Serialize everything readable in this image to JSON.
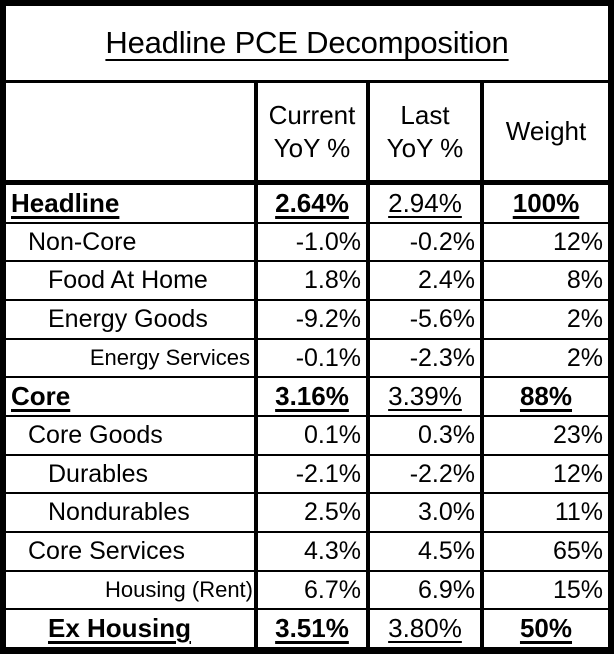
{
  "chart_data": {
    "type": "table",
    "title": "Headline PCE Decomposition",
    "columns": [
      "",
      "Current YoY %",
      "Last YoY %",
      "Weight"
    ],
    "rows": [
      {
        "label": "Headline",
        "current": "2.64%",
        "last": "2.94%",
        "weight": "100%"
      },
      {
        "label": "Non-Core",
        "current": "-1.0%",
        "last": "-0.2%",
        "weight": "12%"
      },
      {
        "label": "Food At Home",
        "current": "1.8%",
        "last": "2.4%",
        "weight": "8%"
      },
      {
        "label": "Energy Goods",
        "current": "-9.2%",
        "last": "-5.6%",
        "weight": "2%"
      },
      {
        "label": "Energy Services",
        "current": "-0.1%",
        "last": "-2.3%",
        "weight": "2%"
      },
      {
        "label": "Core",
        "current": "3.16%",
        "last": "3.39%",
        "weight": "88%"
      },
      {
        "label": "Core Goods",
        "current": "0.1%",
        "last": "0.3%",
        "weight": "23%"
      },
      {
        "label": "Durables",
        "current": "-2.1%",
        "last": "-2.2%",
        "weight": "12%"
      },
      {
        "label": "Nondurables",
        "current": "2.5%",
        "last": "3.0%",
        "weight": "11%"
      },
      {
        "label": "Core Services",
        "current": "4.3%",
        "last": "4.5%",
        "weight": "65%"
      },
      {
        "label": "Housing (Rent)",
        "current": "6.7%",
        "last": "6.9%",
        "weight": "15%"
      },
      {
        "label": "Ex Housing",
        "current": "3.51%",
        "last": "3.80%",
        "weight": "50%"
      }
    ],
    "summary_row_indexes": [
      0,
      5,
      11
    ],
    "layout_hints": {
      "grid": "black ruled table",
      "summary_rows_style": "bold underlined, values centered; Last-YoY value underlined regular weight",
      "detail_rows_style": "right-aligned values"
    },
    "colors": {
      "text": "#000000",
      "background": "#ffffff",
      "border": "#000000"
    }
  }
}
